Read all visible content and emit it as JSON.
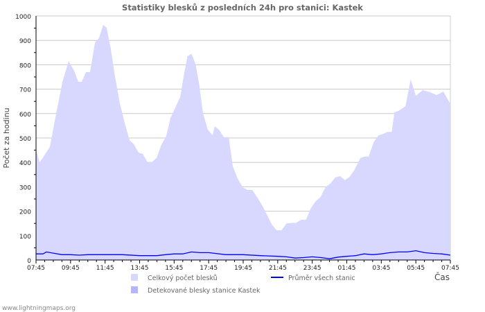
{
  "chart_data": {
    "type": "area",
    "title": "Statistiky blesků z posledních 24h pro stanici: Kastek",
    "xlabel": "Čas",
    "ylabel": "Počet za hodinu",
    "ylim": [
      0,
      1000
    ],
    "xlim_hours": [
      0,
      24
    ],
    "yticks": [
      "0",
      "100",
      "200",
      "300",
      "400",
      "500",
      "600",
      "700",
      "800",
      "900",
      "1000"
    ],
    "xticks": [
      "07:45",
      "09:45",
      "11:45",
      "13:45",
      "15:45",
      "17:45",
      "19:45",
      "21:45",
      "23:45",
      "01:45",
      "03:45",
      "05:45",
      "07:45"
    ],
    "grid": true,
    "legend_position": "bottom",
    "legend": [
      {
        "label": "Celkový počet blesků",
        "kind": "area",
        "color": "#d8d8ff"
      },
      {
        "label": "Detekované blesky stanice Kastek",
        "kind": "area",
        "color": "#b4b4ff"
      },
      {
        "label": "Průměr všech stanic",
        "kind": "line",
        "color": "#0000ff"
      }
    ],
    "series": [
      {
        "name": "Celkový počet blesků",
        "x_hours": [
          0,
          0.2,
          0.4,
          0.8,
          1.12,
          1.53,
          1.89,
          2.21,
          2.45,
          2.65,
          2.89,
          3.13,
          3.41,
          3.65,
          3.89,
          4.09,
          4.33,
          4.57,
          4.86,
          5.14,
          5.42,
          5.66,
          5.94,
          6.18,
          6.46,
          6.74,
          6.98,
          7.26,
          7.54,
          7.79,
          8.07,
          8.35,
          8.57,
          8.77,
          9.01,
          9.25,
          9.47,
          9.67,
          9.95,
          10.23,
          10.35,
          10.6,
          10.88,
          11.16,
          11.4,
          11.69,
          11.97,
          12.25,
          12.53,
          12.82,
          13.1,
          13.38,
          13.66,
          13.94,
          14.22,
          14.51,
          14.79,
          15.07,
          15.35,
          15.64,
          15.92,
          16.2,
          16.48,
          16.76,
          17.05,
          17.33,
          17.61,
          17.89,
          18.17,
          18.45,
          18.79,
          19.03,
          19.27,
          19.56,
          19.84,
          20.12,
          20.36,
          20.6,
          20.76,
          21.0,
          21.4,
          21.7,
          22.0,
          22.4,
          22.8,
          23.2,
          23.6,
          24
        ],
        "values": [
          455,
          400,
          420,
          463,
          582,
          730,
          815,
          775,
          730,
          730,
          770,
          770,
          890,
          910,
          963,
          952,
          866,
          753,
          640,
          560,
          490,
          475,
          440,
          435,
          400,
          403,
          418,
          472,
          508,
          582,
          625,
          668,
          760,
          835,
          845,
          800,
          710,
          602,
          534,
          511,
          548,
          534,
          503,
          503,
          383,
          332,
          298,
          287,
          287,
          256,
          224,
          185,
          145,
          122,
          122,
          150,
          152,
          152,
          165,
          165,
          213,
          241,
          258,
          298,
          313,
          338,
          344,
          327,
          341,
          370,
          418,
          424,
          424,
          483,
          511,
          517,
          525,
          525,
          605,
          611,
          630,
          740,
          673,
          696,
          688,
          676,
          690,
          640
        ]
      },
      {
        "name": "Detekované blesky stanice Kastek",
        "x_hours": [
          0,
          24
        ],
        "values": [
          0,
          0
        ]
      },
      {
        "name": "Průměr všech stanic",
        "x_hours": [
          0,
          0.4,
          0.6,
          1.0,
          1.5,
          2.0,
          2.5,
          3.0,
          4.0,
          5.0,
          6.0,
          7.0,
          7.5,
          8.0,
          8.5,
          9.0,
          9.5,
          10.0,
          11.0,
          12.0,
          13.0,
          14.0,
          14.5,
          15.0,
          15.5,
          16.0,
          16.5,
          17.0,
          17.5,
          18.0,
          18.5,
          19.0,
          19.5,
          20.0,
          20.5,
          21.0,
          21.5,
          22.0,
          22.5,
          23.0,
          23.5,
          24
        ],
        "values": [
          25,
          25,
          33,
          28,
          22,
          22,
          20,
          22,
          22,
          22,
          18,
          18,
          22,
          25,
          25,
          33,
          30,
          30,
          22,
          22,
          18,
          15,
          13,
          8,
          10,
          13,
          10,
          5,
          12,
          15,
          18,
          25,
          22,
          25,
          30,
          33,
          33,
          38,
          30,
          27,
          25,
          20
        ]
      }
    ]
  },
  "footer": {
    "source": "www.lightningmaps.org"
  }
}
